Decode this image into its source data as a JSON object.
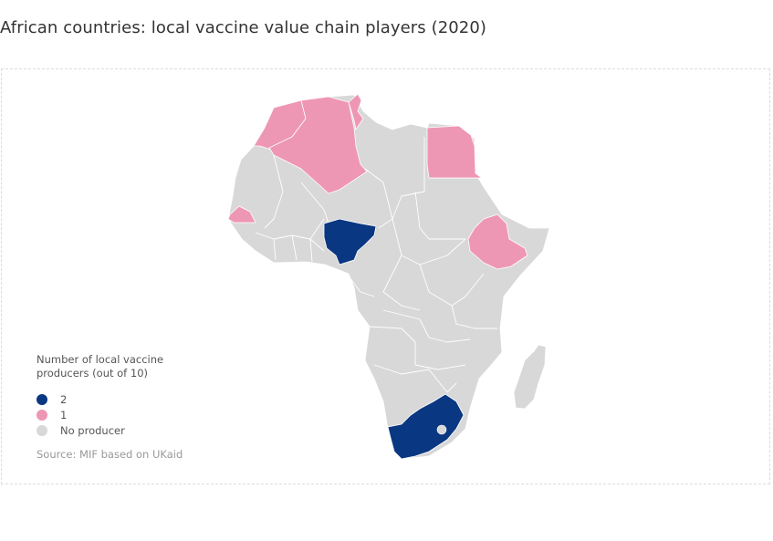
{
  "title": "African countries: local vaccine value chain players (2020)",
  "legend": {
    "title_line1": "Number of local vaccine",
    "title_line2": "producers (out of 10)",
    "items": [
      {
        "label": "2",
        "color": "#0a3782"
      },
      {
        "label": "1",
        "color": "#ee97b4"
      },
      {
        "label": "No producer",
        "color": "#d8d8d8"
      }
    ]
  },
  "source": "Source: MIF based on UKaid",
  "map_data": {
    "colors": {
      "two": "#0a3782",
      "one": "#ee97b4",
      "none": "#d8d8d8",
      "border": "#ffffff"
    },
    "countries": [
      {
        "name": "Nigeria",
        "producers": 2
      },
      {
        "name": "South Africa",
        "producers": 2
      },
      {
        "name": "Morocco",
        "producers": 1
      },
      {
        "name": "Algeria",
        "producers": 1
      },
      {
        "name": "Tunisia",
        "producers": 1
      },
      {
        "name": "Egypt",
        "producers": 1
      },
      {
        "name": "Senegal",
        "producers": 1
      },
      {
        "name": "Ethiopia",
        "producers": 1
      }
    ]
  }
}
